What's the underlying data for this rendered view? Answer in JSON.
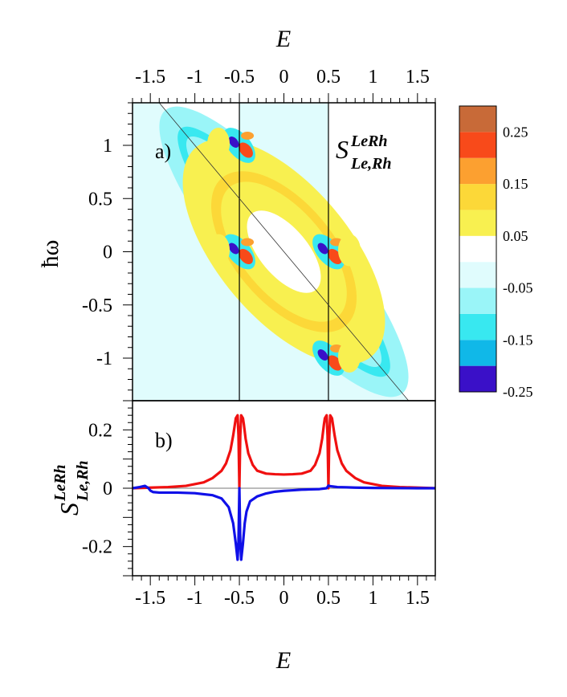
{
  "chart_data": [
    {
      "panel": "a",
      "type": "heatmap",
      "panel_label": "a)",
      "title_main": "S",
      "title_sup": "LeRh",
      "title_sub": "Le,Rh",
      "xlabel": "E",
      "ylabel": "ħω",
      "xlim": [
        -1.7,
        1.7
      ],
      "ylim": [
        -1.4,
        1.4
      ],
      "x_ticks": [
        -1.5,
        -1,
        -0.5,
        0,
        0.5,
        1,
        1.5
      ],
      "x_tick_labels": [
        "-1.5",
        "-1",
        "-0.5",
        "0",
        "0.5",
        "1",
        "1.5"
      ],
      "y_ticks": [
        1,
        0.5,
        0,
        -0.5,
        -1
      ],
      "y_tick_labels": [
        "1",
        "0.5",
        "0",
        "-0.5",
        "-1"
      ],
      "vertical_lines_x": [
        -0.5,
        0.5
      ],
      "diagonal_line": "E + ħω = 0",
      "colorbar": {
        "levels": [
          -0.25,
          -0.2,
          -0.15,
          -0.1,
          -0.05,
          0,
          0.05,
          0.1,
          0.15,
          0.2,
          0.25,
          0.3
        ],
        "colors": [
          "#3a10c8",
          "#10b8e8",
          "#38e8f0",
          "#9af5f8",
          "#e0fcfd",
          "#ffffff",
          "#f8f050",
          "#fcd838",
          "#fca030",
          "#f84a1a",
          "#c86a38"
        ],
        "tick_values": [
          0.25,
          0.15,
          0.05,
          -0.05,
          -0.15,
          -0.25
        ],
        "tick_labels": [
          "0.25",
          "0.15",
          "0.05",
          "-0.05",
          "-0.15",
          "-0.25"
        ]
      }
    },
    {
      "panel": "b",
      "type": "line",
      "panel_label": "b)",
      "xlabel": "E",
      "ylabel_main": "S",
      "ylabel_sup": "LeRh",
      "ylabel_sub": "Le,Rh",
      "xlim": [
        -1.7,
        1.7
      ],
      "ylim": [
        -0.3,
        0.3
      ],
      "x_ticks": [
        -1.5,
        -1,
        -0.5,
        0,
        0.5,
        1,
        1.5
      ],
      "x_tick_labels": [
        "-1.5",
        "-1",
        "-0.5",
        "0",
        "0.5",
        "1",
        "1.5"
      ],
      "y_ticks": [
        0.2,
        0,
        -0.2
      ],
      "y_tick_labels": [
        "0.2",
        "0",
        "-0.2"
      ],
      "series": [
        {
          "name": "red",
          "color": "#f01010",
          "x": [
            -1.7,
            -1.5,
            -1.3,
            -1.1,
            -0.9,
            -0.8,
            -0.7,
            -0.65,
            -0.6,
            -0.57,
            -0.54,
            -0.52,
            -0.51,
            -0.5,
            -0.49,
            -0.48,
            -0.46,
            -0.45,
            -0.43,
            -0.4,
            -0.35,
            -0.3,
            -0.2,
            -0.1,
            0,
            0.1,
            0.2,
            0.3,
            0.35,
            0.4,
            0.43,
            0.45,
            0.46,
            0.48,
            0.49,
            0.5,
            0.51,
            0.52,
            0.54,
            0.57,
            0.6,
            0.65,
            0.7,
            0.8,
            0.9,
            1.1,
            1.3,
            1.5,
            1.7
          ],
          "y": [
            0.0,
            0.002,
            0.004,
            0.008,
            0.02,
            0.035,
            0.06,
            0.085,
            0.13,
            0.18,
            0.24,
            0.25,
            0.18,
            0.0,
            0.18,
            0.25,
            0.24,
            0.22,
            0.17,
            0.12,
            0.08,
            0.06,
            0.05,
            0.048,
            0.047,
            0.048,
            0.05,
            0.06,
            0.08,
            0.12,
            0.17,
            0.22,
            0.24,
            0.25,
            0.18,
            0.0,
            0.18,
            0.25,
            0.24,
            0.18,
            0.13,
            0.085,
            0.06,
            0.035,
            0.02,
            0.008,
            0.004,
            0.002,
            0.0
          ]
        },
        {
          "name": "blue",
          "color": "#1010e8",
          "x": [
            -1.7,
            -1.62,
            -1.56,
            -1.52,
            -1.5,
            -1.47,
            -1.4,
            -1.2,
            -1.0,
            -0.8,
            -0.7,
            -0.62,
            -0.57,
            -0.54,
            -0.52,
            -0.51,
            -0.5,
            -0.49,
            -0.48,
            -0.46,
            -0.44,
            -0.42,
            -0.38,
            -0.3,
            -0.2,
            -0.1,
            0,
            0.1,
            0.2,
            0.3,
            0.4,
            0.45,
            0.48,
            0.5,
            0.52,
            0.55,
            0.6,
            0.7,
            0.8,
            1.0,
            1.2,
            1.5,
            1.7
          ],
          "y": [
            0.0,
            0.004,
            0.008,
            0.0,
            -0.008,
            -0.013,
            -0.015,
            -0.015,
            -0.017,
            -0.024,
            -0.035,
            -0.065,
            -0.12,
            -0.19,
            -0.245,
            -0.18,
            0.0,
            -0.18,
            -0.245,
            -0.19,
            -0.12,
            -0.08,
            -0.045,
            -0.028,
            -0.018,
            -0.012,
            -0.009,
            -0.007,
            -0.005,
            -0.004,
            -0.003,
            -0.001,
            0.0,
            0.009,
            0.007,
            0.006,
            0.004,
            0.003,
            0.002,
            0.001,
            0.0005,
            0.0,
            0.0
          ]
        }
      ]
    }
  ]
}
